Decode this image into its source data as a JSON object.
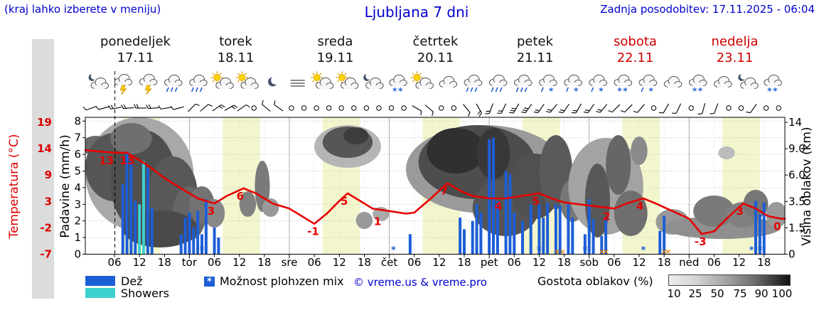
{
  "header": {
    "hint": "(kraj lahko izberete v meniju)",
    "title": "Ljubljana 7 dni",
    "updated": "Zadnja posodobitev: 17.11.2025 - 06:04"
  },
  "days": [
    {
      "name": "ponedeljek",
      "date": "17.11"
    },
    {
      "name": "torek",
      "date": "18.11"
    },
    {
      "name": "sreda",
      "date": "19.11"
    },
    {
      "name": "četrtek",
      "date": "20.11"
    },
    {
      "name": "petek",
      "date": "21.11"
    },
    {
      "name": "sobota",
      "date": "22.11"
    },
    {
      "name": "nedelja",
      "date": "23.11"
    }
  ],
  "axes": {
    "temp_title": "Temperatura (°C)",
    "precip_title": "Padavine (mm/h)",
    "cloud_title": "Višina oblakov (km)",
    "temp_ticks": [
      "19",
      "14",
      "9",
      "3",
      "-2",
      "-7"
    ],
    "precip_ticks": [
      "8",
      "7",
      "6",
      "5",
      "4",
      "3",
      "2",
      "1",
      "0"
    ],
    "cloud_ticks": [
      "14",
      "9.0",
      "6.0",
      "3.5",
      "1.5",
      "0"
    ],
    "x_tick_labels": [
      "06",
      "12",
      "18",
      "tor",
      "06",
      "12",
      "18",
      "sre",
      "06",
      "12",
      "18",
      "čet",
      "06",
      "12",
      "18",
      "pet",
      "06",
      "12",
      "18",
      "sob",
      "06",
      "12",
      "18",
      "ned",
      "06",
      "12",
      "18"
    ]
  },
  "legend": {
    "rain": "Dež",
    "showers": "Showers",
    "star_glyph": "*",
    "chance": "Možnost ploh",
    "frozen": "frozen mix",
    "copyright": "© vreme.us & vreme.pro",
    "cloud_density": "Gostota oblakov (%)",
    "density_ticks": [
      "10",
      "25",
      "50",
      "75",
      "90",
      "100"
    ]
  },
  "colors": {
    "rain": "#1c5ed6",
    "showers": "#3ecfcf",
    "temp": "#e60000",
    "header_blue": "#0000cc",
    "day_red": "#cc0000",
    "band": "#f3f6cd",
    "frozen_mark": "#e08000"
  },
  "chart_data": {
    "type": "meteogram-composite",
    "title": "Ljubljana 7 dni",
    "x_unit": "hours from Monday 00:00, 7 days total",
    "hours_span": 168,
    "now_hour": 6.1,
    "day_band_hours": [
      8,
      17
    ],
    "precip_axis_mm": [
      0,
      8
    ],
    "temp_axis_c": [
      -7,
      19
    ],
    "cloud_axis_km": [
      "0",
      "1.5",
      "3.5",
      "6.0",
      "9.0",
      "14"
    ],
    "temp_line": [
      [
        -1,
        13.5
      ],
      [
        3,
        13.2
      ],
      [
        6,
        13
      ],
      [
        9,
        13
      ],
      [
        11,
        12
      ],
      [
        14,
        10.5
      ],
      [
        18,
        8
      ],
      [
        22,
        6
      ],
      [
        26,
        4
      ],
      [
        30,
        3
      ],
      [
        33,
        4.5
      ],
      [
        37,
        6
      ],
      [
        40,
        5
      ],
      [
        44,
        3
      ],
      [
        48,
        2
      ],
      [
        51,
        0.5
      ],
      [
        54,
        -1
      ],
      [
        57,
        1
      ],
      [
        60,
        3.5
      ],
      [
        62,
        5
      ],
      [
        65,
        3.5
      ],
      [
        68,
        2
      ],
      [
        72,
        1.5
      ],
      [
        76,
        1
      ],
      [
        78,
        1.2
      ],
      [
        82,
        4
      ],
      [
        86,
        7
      ],
      [
        89,
        5.5
      ],
      [
        92,
        4.5
      ],
      [
        96,
        4
      ],
      [
        100,
        4
      ],
      [
        104,
        4.5
      ],
      [
        108,
        5
      ],
      [
        111,
        4
      ],
      [
        114,
        3.2
      ],
      [
        118,
        2.8
      ],
      [
        122,
        2.4
      ],
      [
        126,
        2
      ],
      [
        129,
        3
      ],
      [
        133,
        4
      ],
      [
        136,
        3
      ],
      [
        140,
        1.5
      ],
      [
        144,
        0
      ],
      [
        147,
        -3
      ],
      [
        150,
        -2.5
      ],
      [
        153,
        0
      ],
      [
        157,
        3
      ],
      [
        160,
        2
      ],
      [
        163,
        0.5
      ],
      [
        166,
        0
      ],
      [
        167,
        0
      ]
    ],
    "temp_point_labels": [
      {
        "h": 4,
        "v": "13"
      },
      {
        "h": 9,
        "v": "13"
      },
      {
        "h": 30,
        "v": "3"
      },
      {
        "h": 37,
        "v": "6"
      },
      {
        "h": 54,
        "v": "-1"
      },
      {
        "h": 62,
        "v": "5"
      },
      {
        "h": 70,
        "v": "1"
      },
      {
        "h": 86,
        "v": "7"
      },
      {
        "h": 99,
        "v": "4"
      },
      {
        "h": 108,
        "v": "5"
      },
      {
        "h": 125,
        "v": "2"
      },
      {
        "h": 133,
        "v": "4"
      },
      {
        "h": 147,
        "v": "-3"
      },
      {
        "h": 157,
        "v": "3"
      },
      {
        "h": 166,
        "v": "0"
      }
    ],
    "rain_bars": [
      [
        8,
        4.2
      ],
      [
        9,
        6.1
      ],
      [
        10,
        5.6
      ],
      [
        11,
        3.2
      ],
      [
        14,
        5.2
      ],
      [
        15,
        2.8
      ],
      [
        22,
        1.2
      ],
      [
        23,
        2.2
      ],
      [
        24,
        2.5
      ],
      [
        25,
        1.6
      ],
      [
        26,
        2.6
      ],
      [
        27,
        1.2
      ],
      [
        28,
        3.3
      ],
      [
        30,
        1.6
      ],
      [
        31,
        1.0
      ],
      [
        77,
        1.2
      ],
      [
        89,
        2.2
      ],
      [
        90,
        1.5
      ],
      [
        92,
        2.0
      ],
      [
        93,
        3.0
      ],
      [
        94,
        2.5
      ],
      [
        96,
        6.9
      ],
      [
        97,
        7.0
      ],
      [
        98,
        3.2
      ],
      [
        100,
        5.0
      ],
      [
        101,
        4.8
      ],
      [
        102,
        2.5
      ],
      [
        104,
        2.0
      ],
      [
        106,
        3.0
      ],
      [
        108,
        3.0
      ],
      [
        109,
        2.2
      ],
      [
        110,
        3.1
      ],
      [
        112,
        3.0
      ],
      [
        113,
        2.9
      ],
      [
        115,
        3.0
      ],
      [
        116,
        2.2
      ],
      [
        119,
        1.2
      ],
      [
        120,
        3.3
      ],
      [
        121,
        2.1
      ],
      [
        123,
        1.1
      ],
      [
        124,
        2.2
      ],
      [
        137,
        1.4
      ],
      [
        138,
        2.3
      ],
      [
        160,
        3.2
      ],
      [
        161,
        2.4
      ],
      [
        162,
        3.1
      ]
    ],
    "shower_bars": [
      [
        12,
        3.0
      ],
      [
        13,
        5.6
      ]
    ],
    "snow_star_hours": [
      27,
      73,
      108,
      119,
      133,
      159,
      161
    ],
    "frozen_mix_hours": [
      112.3,
      113.6,
      123.0,
      124.0,
      138.0,
      139.0
    ],
    "wind_per_3h": [
      "250/1",
      "255/1",
      "260/2",
      "265/2",
      "270/2",
      "265/2",
      "260/1",
      "255/1",
      "45/1",
      "50/1",
      "55/2",
      "60/2",
      "55/1",
      "c",
      "310/1",
      "305/1",
      "c",
      "c",
      "c",
      "c",
      "c",
      "c",
      "c",
      "c",
      "c",
      "c",
      "120/1",
      "130/1",
      "c",
      "c",
      "140/1",
      "150/2",
      "200/2",
      "205/2",
      "210/3",
      "215/3",
      "215/2",
      "220/2",
      "215/2",
      "210/2",
      "215/2",
      "220/2",
      "225/1",
      "225/1",
      "220/1",
      "c",
      "210/1",
      "205/1",
      "c",
      "195/1",
      "200/1",
      "c",
      "c",
      "215/1",
      "c",
      "c"
    ],
    "icons_per_6h": [
      "moon-cloud",
      "thunder",
      "thunder",
      "rain",
      "rain",
      "sun-cloud",
      "sun-cloud",
      "moon",
      "fog",
      "sun-cloud",
      "sun-cloud",
      "moon-cloud",
      "snow-cloud",
      "sun-cloud",
      "cloud",
      "rain",
      "rain",
      "rain",
      "snow-rain",
      "snow-rain",
      "snow-rain",
      "snow-cloud",
      "snow-rain",
      "cloud",
      "snow-cloud",
      "cloud",
      "moon-cloud",
      "snow-cloud"
    ],
    "cloud_blobs": [
      [
        12,
        13,
        245,
        80,
        "#a8a8a8"
      ],
      [
        1.5,
        3.5,
        205,
        14,
        "#6a6a6a"
      ],
      [
        6,
        7,
        235,
        48,
        "#565656"
      ],
      [
        13,
        8,
        255,
        72,
        "#4f4f4f"
      ],
      [
        10,
        5,
        195,
        22,
        "#6f6f6f"
      ],
      [
        20,
        6,
        275,
        55,
        "#585858"
      ],
      [
        24,
        4,
        300,
        38,
        "#666666"
      ],
      [
        27,
        3,
        288,
        26,
        "#737373"
      ],
      [
        17,
        9,
        322,
        26,
        "#4a4a4a"
      ],
      [
        30,
        2.5,
        300,
        20,
        "#888888"
      ],
      [
        38,
        2,
        287,
        18,
        "#808080"
      ],
      [
        41.5,
        1.8,
        262,
        36,
        "#7a7a7a"
      ],
      [
        43.5,
        2,
        292,
        13,
        "#999999"
      ],
      [
        57,
        3,
        205,
        14,
        "#b0b0b0"
      ],
      [
        62,
        8,
        206,
        30,
        "#b5b5b5"
      ],
      [
        62,
        6,
        200,
        22,
        "#565656"
      ],
      [
        64,
        3,
        191,
        12,
        "#3c3c3c"
      ],
      [
        66,
        2,
        310,
        12,
        "#999999"
      ],
      [
        70,
        2,
        301,
        10,
        "#aaaaaa"
      ],
      [
        95,
        19,
        238,
        62,
        "#9a9a9a"
      ],
      [
        93,
        14,
        228,
        52,
        "#4d4d4d"
      ],
      [
        88,
        7,
        212,
        32,
        "#303030"
      ],
      [
        97,
        4,
        216,
        36,
        "#383838"
      ],
      [
        100,
        8,
        292,
        40,
        "#555555"
      ],
      [
        107,
        6,
        262,
        46,
        "#505050"
      ],
      [
        112,
        4,
        242,
        52,
        "#5a5a5a"
      ],
      [
        116,
        3,
        282,
        30,
        "#777777"
      ],
      [
        124,
        9,
        262,
        68,
        "#a3a3a3"
      ],
      [
        122,
        3,
        282,
        52,
        "#585858"
      ],
      [
        127,
        3,
        232,
        42,
        "#666666"
      ],
      [
        130,
        4,
        300,
        32,
        "#6f6f6f"
      ],
      [
        132,
        2,
        212,
        20,
        "#8a8a8a"
      ],
      [
        140,
        4,
        312,
        18,
        "#999999"
      ],
      [
        152,
        14,
        320,
        16,
        "#8f8f8f"
      ],
      [
        150,
        5,
        297,
        22,
        "#7a7a7a"
      ],
      [
        157,
        4,
        302,
        18,
        "#808080"
      ],
      [
        153,
        2,
        215,
        9,
        "#bbbbbb"
      ],
      [
        160,
        3,
        287,
        20,
        "#777777"
      ],
      [
        165,
        2.5,
        302,
        18,
        "#999999"
      ]
    ]
  }
}
